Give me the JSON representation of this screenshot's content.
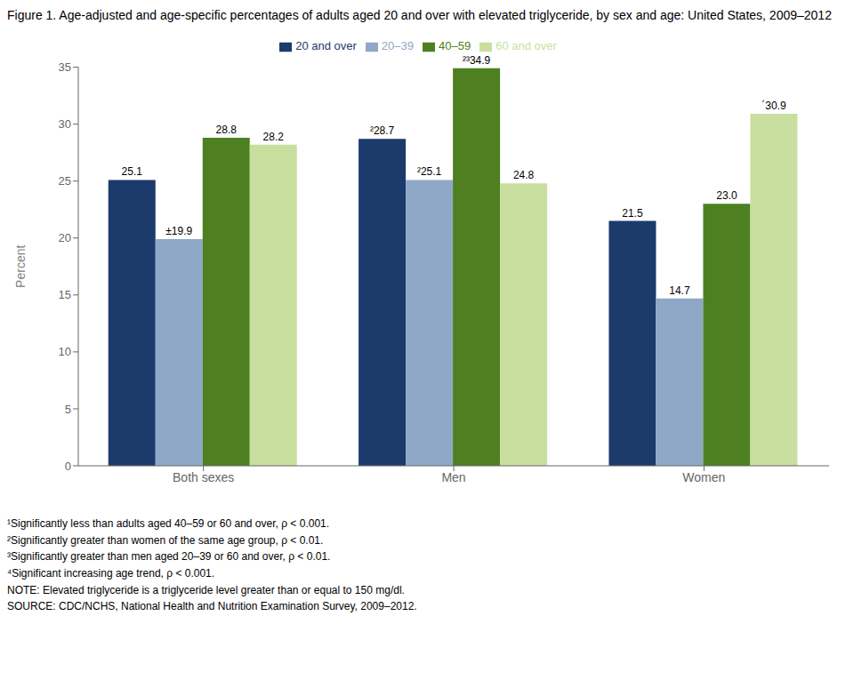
{
  "chart_data": {
    "type": "bar",
    "title": "Figure 1. Age-adjusted and age-specific percentages of adults aged 20 and over with elevated triglyceride, by sex and age: United States, 2009–2012",
    "categories": [
      "Both sexes",
      "Men",
      "Women"
    ],
    "series": [
      {
        "name": "20 and over",
        "color": "#1c3a6b",
        "values": [
          25.1,
          28.7,
          21.5
        ],
        "value_labels": [
          "25.1",
          "²28.7",
          "21.5"
        ]
      },
      {
        "name": "20–39",
        "color": "#8fa8c8",
        "values": [
          19.9,
          25.1,
          14.7
        ],
        "value_labels": [
          "±19.9",
          "²25.1",
          "14.7"
        ]
      },
      {
        "name": "40–59",
        "color": "#4e8022",
        "values": [
          28.8,
          34.9,
          23.0
        ],
        "value_labels": [
          "28.8",
          "²³34.9",
          "23.0"
        ]
      },
      {
        "name": "60 and over",
        "color": "#c8dfa0",
        "values": [
          28.2,
          24.8,
          30.9
        ],
        "value_labels": [
          "28.2",
          "24.8",
          "´30.9"
        ]
      }
    ],
    "ylabel": "Percent",
    "ylim": [
      0,
      35
    ],
    "yticks": [
      0,
      5,
      10,
      15,
      20,
      25,
      30,
      35
    ],
    "grid": false,
    "legend": "top",
    "data_labels": true,
    "annotations": [
      "¹Significantly less than adults aged 40–59 or 60 and over, ρ < 0.001.",
      "²Significantly greater than women of the same age group, ρ < 0.01.",
      "³Significantly greater than men aged 20–39 or 60 and over, ρ < 0.01.",
      "⁴Significant increasing age trend, ρ < 0.001.",
      "NOTE: Elevated triglyceride is a triglyceride level greater than or equal to 150 mg/dl.",
      "SOURCE: CDC/NCHS, National Health and Nutrition Examination Survey, 2009–2012."
    ]
  }
}
